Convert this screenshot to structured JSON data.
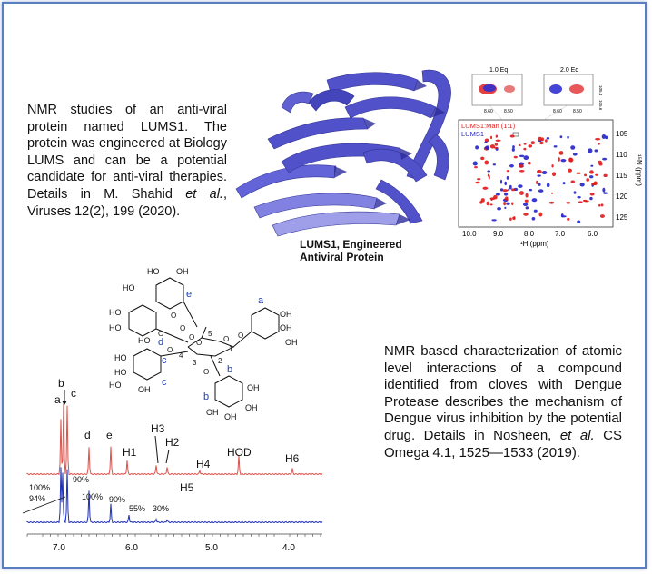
{
  "intro": {
    "text_before": "NMR studies of an anti-viral protein named LUMS1. The protein was engineered at Biology LUMS and can be a potential candidate for anti-viral therapies. Details in M. Shahid ",
    "et_al": "et al.",
    "text_after": ", Viruses 12(2), 199 (2020)."
  },
  "protein_caption": {
    "line1": "LUMS1, Engineered",
    "line2": "Antiviral Protein"
  },
  "hsqc": {
    "inset_left_label": "1.0 Eq",
    "inset_right_label": "2.0 Eq",
    "inset_left_ticks": [
      "8.60",
      "8.50"
    ],
    "inset_right_ticks": [
      "8.60",
      "8.50"
    ],
    "inset_y_ticks": [
      "105.4",
      "105.6"
    ],
    "legend_red": "LUMS1:Man (1:1)",
    "legend_blue": "LUMS1",
    "x_ticks": [
      "10.0",
      "9.0",
      "8.0",
      "7.0",
      "6.0"
    ],
    "y_ticks": [
      "105",
      "110",
      "115",
      "120",
      "125"
    ],
    "x_label": "¹H (ppm)",
    "y_label": "¹⁵N (ppm)"
  },
  "compound": {
    "labels": [
      "HO",
      "HO",
      "OH",
      "e",
      "HO",
      "HO",
      "d",
      "HO",
      "HO",
      "OH",
      "a",
      "OH",
      "OH",
      "HO",
      "c",
      "HO",
      "c",
      "OH",
      "OH",
      "b",
      "b",
      "OH",
      "OH",
      "OH",
      "5",
      "4",
      "3",
      "2",
      "1",
      "O",
      "O",
      "O",
      "O",
      "O",
      "O",
      "O",
      "O",
      "O"
    ]
  },
  "spectrum": {
    "peak_labels": [
      "a",
      "b",
      "c",
      "d",
      "e",
      "H1",
      "H3",
      "H2",
      "H4",
      "HOD",
      "H6",
      "H5"
    ],
    "percent_labels": [
      "100%",
      "94%",
      "90%",
      "100%",
      "90%",
      "55%",
      "30%"
    ],
    "x_ticks": [
      "7.0",
      "6.0",
      "5.0",
      "4.0"
    ],
    "colors": {
      "top": "#e0504a",
      "bottom": "#1f2fb8"
    }
  },
  "conclusion": {
    "text_before": "NMR based characterization of atomic level interactions of a compound identified from cloves with Dengue Protease describes the mechanism of Dengue virus inhibition by the potential drug. Details in Nosheen, ",
    "et_al": "et al.",
    "text_after": " CS Omega 4.1, 1525—1533 (2019)."
  }
}
